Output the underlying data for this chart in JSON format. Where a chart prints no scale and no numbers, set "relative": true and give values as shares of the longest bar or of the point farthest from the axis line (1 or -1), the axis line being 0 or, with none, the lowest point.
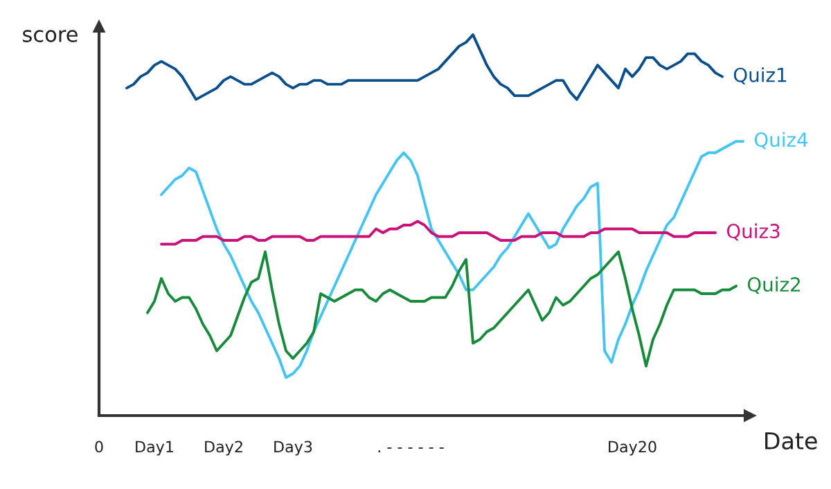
{
  "chart_data": {
    "type": "line",
    "xlabel": "Date",
    "ylabel": "score",
    "relative": true,
    "categories": [
      "0",
      null,
      null,
      null,
      null,
      null,
      null,
      null,
      "Day1",
      null,
      null,
      null,
      null,
      null,
      null,
      null,
      null,
      null,
      "Day2",
      null,
      null,
      null,
      null,
      null,
      null,
      null,
      null,
      null,
      "Day3",
      null,
      null,
      null,
      null,
      null,
      null,
      null,
      null,
      null,
      null,
      null,
      null,
      null,
      null,
      null,
      null,
      ". - - - - - -",
      null,
      null,
      null,
      null,
      null,
      null,
      null,
      null,
      null,
      null,
      null,
      null,
      null,
      null,
      null,
      null,
      null,
      null,
      null,
      null,
      null,
      null,
      null,
      null,
      null,
      null,
      null,
      null,
      null,
      null,
      null,
      "Day20",
      null,
      null,
      null,
      null,
      null,
      null,
      null,
      null,
      null,
      null,
      null,
      null,
      null,
      null,
      null,
      null
    ],
    "series": [
      {
        "name": "Quiz1",
        "color": "#0b4f8a",
        "values": [
          null,
          null,
          null,
          null,
          0.86,
          0.87,
          0.89,
          0.9,
          0.92,
          0.93,
          0.92,
          0.91,
          0.89,
          0.86,
          0.83,
          0.84,
          0.85,
          0.86,
          0.88,
          0.89,
          0.88,
          0.87,
          0.87,
          0.88,
          0.89,
          0.9,
          0.89,
          0.87,
          0.86,
          0.87,
          0.87,
          0.88,
          0.88,
          0.87,
          0.87,
          0.87,
          0.88,
          0.88,
          0.88,
          0.88,
          0.88,
          0.88,
          0.88,
          0.88,
          0.88,
          0.88,
          0.88,
          0.89,
          0.9,
          0.91,
          0.93,
          0.95,
          0.97,
          0.98,
          1.0,
          0.96,
          0.92,
          0.89,
          0.87,
          0.86,
          0.84,
          0.84,
          0.84,
          0.85,
          0.86,
          0.87,
          0.88,
          0.88,
          0.85,
          0.83,
          0.86,
          0.89,
          0.92,
          0.9,
          0.88,
          0.86,
          0.91,
          0.89,
          0.91,
          0.94,
          0.94,
          0.92,
          0.91,
          0.92,
          0.93,
          0.95,
          0.95,
          0.93,
          0.92,
          0.9,
          0.89,
          null,
          null,
          null
        ]
      },
      {
        "name": "Quiz4",
        "color": "#45c4f2",
        "values": [
          null,
          null,
          null,
          null,
          null,
          null,
          null,
          null,
          null,
          0.58,
          0.6,
          0.62,
          0.63,
          0.65,
          0.64,
          0.59,
          0.54,
          0.49,
          0.45,
          0.42,
          0.38,
          0.34,
          0.3,
          0.27,
          0.23,
          0.19,
          0.15,
          0.1,
          0.11,
          0.13,
          0.17,
          0.22,
          0.26,
          0.3,
          0.34,
          0.38,
          0.42,
          0.46,
          0.5,
          0.54,
          0.58,
          0.61,
          0.64,
          0.67,
          0.69,
          0.67,
          0.63,
          0.56,
          0.49,
          0.46,
          0.43,
          0.4,
          0.37,
          0.33,
          0.33,
          0.35,
          0.37,
          0.39,
          0.42,
          0.44,
          0.47,
          0.5,
          0.53,
          0.5,
          0.47,
          0.44,
          0.45,
          0.49,
          0.52,
          0.55,
          0.57,
          0.6,
          0.61,
          0.17,
          0.14,
          0.2,
          0.24,
          0.29,
          0.33,
          0.38,
          0.42,
          0.46,
          0.5,
          0.52,
          0.56,
          0.6,
          0.64,
          0.68,
          0.69,
          0.69,
          0.7,
          0.71,
          0.72,
          0.72
        ]
      },
      {
        "name": "Quiz3",
        "color": "#c8127a",
        "values": [
          null,
          null,
          null,
          null,
          null,
          null,
          null,
          null,
          null,
          0.45,
          0.45,
          0.45,
          0.46,
          0.46,
          0.46,
          0.47,
          0.47,
          0.47,
          0.46,
          0.46,
          0.46,
          0.47,
          0.47,
          0.46,
          0.46,
          0.47,
          0.47,
          0.47,
          0.47,
          0.47,
          0.46,
          0.46,
          0.47,
          0.47,
          0.47,
          0.47,
          0.47,
          0.47,
          0.47,
          0.47,
          0.49,
          0.48,
          0.49,
          0.49,
          0.5,
          0.5,
          0.51,
          0.5,
          0.48,
          0.47,
          0.47,
          0.47,
          0.48,
          0.48,
          0.48,
          0.48,
          0.48,
          0.47,
          0.46,
          0.46,
          0.46,
          0.47,
          0.47,
          0.47,
          0.48,
          0.48,
          0.48,
          0.47,
          0.47,
          0.47,
          0.47,
          0.48,
          0.48,
          0.49,
          0.49,
          0.49,
          0.49,
          0.49,
          0.48,
          0.48,
          0.48,
          0.48,
          0.48,
          0.47,
          0.47,
          0.47,
          0.48,
          0.48,
          0.48,
          0.48,
          null,
          null,
          null,
          null
        ]
      },
      {
        "name": "Quiz2",
        "color": "#178a3c",
        "values": [
          null,
          null,
          null,
          null,
          null,
          null,
          null,
          0.27,
          0.3,
          0.36,
          0.32,
          0.3,
          0.31,
          0.31,
          0.28,
          0.24,
          0.21,
          0.17,
          0.19,
          0.21,
          0.26,
          0.31,
          0.35,
          0.36,
          0.43,
          0.33,
          0.24,
          0.17,
          0.15,
          0.17,
          0.19,
          0.22,
          0.32,
          0.31,
          0.3,
          0.31,
          0.32,
          0.33,
          0.33,
          0.31,
          0.3,
          0.32,
          0.33,
          0.32,
          0.31,
          0.3,
          0.3,
          0.3,
          0.31,
          0.31,
          0.31,
          0.34,
          0.38,
          0.41,
          0.19,
          0.2,
          0.22,
          0.23,
          0.25,
          0.27,
          0.29,
          0.31,
          0.33,
          0.29,
          0.25,
          0.27,
          0.31,
          0.29,
          0.3,
          0.32,
          0.34,
          0.36,
          0.37,
          0.39,
          0.41,
          0.43,
          0.36,
          0.28,
          0.21,
          0.13,
          0.2,
          0.24,
          0.29,
          0.33,
          0.33,
          0.33,
          0.33,
          0.32,
          0.32,
          0.32,
          0.33,
          0.33,
          0.34,
          null
        ]
      }
    ]
  }
}
